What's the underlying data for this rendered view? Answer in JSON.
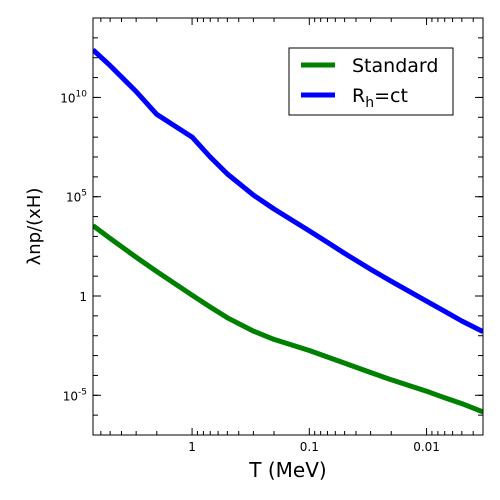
{
  "chart_data": {
    "type": "line",
    "xlabel": "T (MeV)",
    "ylabel": "λnp/(xH)",
    "x_scale": "log",
    "x_reversed": true,
    "y_scale": "log",
    "xlim": [
      7,
      0.0033
    ],
    "ylim": [
      1e-07,
      100000000000000.0
    ],
    "grid": false,
    "legend_position": "top-right",
    "x_ticks": [
      {
        "value": 1,
        "label": "1"
      },
      {
        "value": 0.1,
        "label": "0.1"
      },
      {
        "value": 0.01,
        "label": "0.01"
      }
    ],
    "y_ticks": [
      {
        "value": 1e-05,
        "base": "10",
        "exp": "-5"
      },
      {
        "value": 1,
        "base": "1",
        "exp": ""
      },
      {
        "value": 100000,
        "base": "10",
        "exp": "5"
      },
      {
        "value": 10000000000,
        "base": "10",
        "exp": "10"
      }
    ],
    "series": [
      {
        "name": "Standard",
        "color": "#008000",
        "x": [
          7,
          5,
          3,
          2,
          1,
          0.7,
          0.5,
          0.3,
          0.2,
          0.1,
          0.07,
          0.05,
          0.03,
          0.02,
          0.01,
          0.007,
          0.005,
          0.0033
        ],
        "y": [
          3500.0,
          800.0,
          90.0,
          17.0,
          1.1,
          0.28,
          0.08,
          0.017,
          0.0065,
          0.0018,
          0.00085,
          0.00042,
          0.00014,
          6e-05,
          1.6e-05,
          7.5e-06,
          3.8e-06,
          1.45e-06
        ]
      },
      {
        "name": "R_h=ct",
        "name_main": "R",
        "name_sub": "h",
        "name_rest": "=ct",
        "color": "#0000ff",
        "x": [
          7,
          5,
          3,
          2,
          1,
          0.7,
          0.5,
          0.3,
          0.2,
          0.1,
          0.07,
          0.05,
          0.03,
          0.02,
          0.01,
          0.007,
          0.005,
          0.0033
        ],
        "y": [
          2500000000000.0,
          400000000000.0,
          20000000000.0,
          1400000000.0,
          100000000.0,
          10000000.0,
          1400000.0,
          120000.0,
          24000.0,
          1900.0,
          500.0,
          140.0,
          22.0,
          5.5,
          0.55,
          0.17,
          0.055,
          0.016
        ]
      }
    ]
  }
}
